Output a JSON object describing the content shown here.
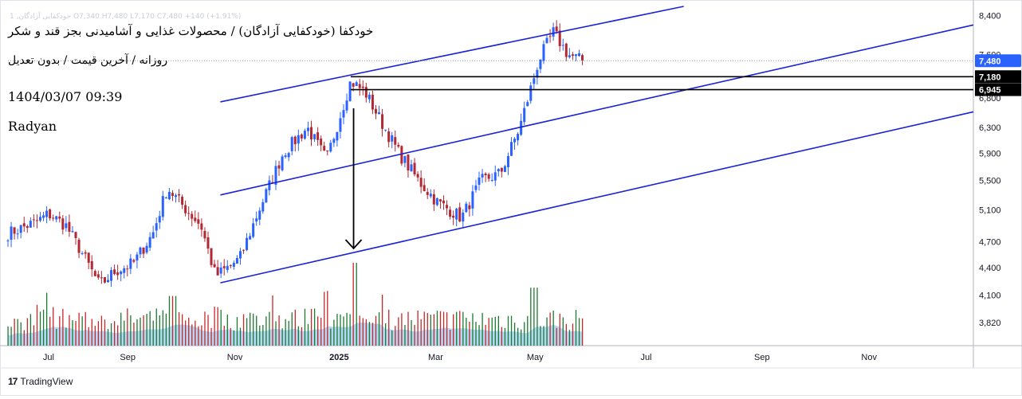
{
  "header": {
    "symbol_line": "خودکفا (خودکفایی آزادگان) / محصولات غذایی و آشامیدنی بجز قند و شکر",
    "period_line": "روزانه / آخرین قیمت / بدون تعدیل",
    "timestamp": "1404/03/07 09:39",
    "author": "Radyan",
    "faint_legend": "1 ,خودکفایی آزادگان  O7,340 H7,480 L7,170 C7,480 +140 (+1.91%)"
  },
  "branding": {
    "logo_text": "TradingView",
    "logo_mark": "17"
  },
  "colors": {
    "up": "#2962ff",
    "down": "#b22833",
    "channel": "#1a23d4",
    "volume_up": "#1b7a2e",
    "volume_down": "#c62828",
    "volume_ma": "#9ccbf3",
    "price_badge": "#2962ff",
    "level_badge": "#000000"
  },
  "chart_data": {
    "type": "candlestick",
    "interval": "daily",
    "y_axis": {
      "position": "right",
      "ticks": [
        "8,400",
        "7,600",
        "6,800",
        "6,300",
        "5,900",
        "5,500",
        "5,100",
        "4,700",
        "4,400",
        "4,100",
        "3,820"
      ],
      "range": [
        3600,
        8600
      ],
      "scale": "log"
    },
    "x_axis": {
      "ticks": [
        "Jul",
        "Sep",
        "Nov",
        "2025",
        "Mar",
        "May",
        "Jul",
        "Sep",
        "Nov"
      ]
    },
    "last_price": {
      "value": 7480,
      "label": "7,480"
    },
    "horizontal_levels": [
      {
        "value": 7180,
        "label": "7,180"
      },
      {
        "value": 6945,
        "label": "6,945"
      }
    ],
    "channel_lines": [
      {
        "name": "upper",
        "from": {
          "t": 0.22,
          "v": 6730
        },
        "to": {
          "t": 0.7,
          "v": 8600
        }
      },
      {
        "name": "middle",
        "from": {
          "t": 0.22,
          "v": 5300
        },
        "to": {
          "t": 1.0,
          "v": 8200
        }
      },
      {
        "name": "lower",
        "from": {
          "t": 0.22,
          "v": 4230
        },
        "to": {
          "t": 1.0,
          "v": 6560
        }
      }
    ],
    "arrow": {
      "from": {
        "t": 0.358,
        "v": 6620
      },
      "to": {
        "t": 0.358,
        "v": 4620
      }
    },
    "price_path": [
      {
        "t": 0.0,
        "v": 4800
      },
      {
        "t": 0.03,
        "v": 4950
      },
      {
        "t": 0.042,
        "v": 5050
      },
      {
        "t": 0.06,
        "v": 4900
      },
      {
        "t": 0.075,
        "v": 4600
      },
      {
        "t": 0.095,
        "v": 4200
      },
      {
        "t": 0.11,
        "v": 4350
      },
      {
        "t": 0.13,
        "v": 4450
      },
      {
        "t": 0.15,
        "v": 4800
      },
      {
        "t": 0.165,
        "v": 5400
      },
      {
        "t": 0.185,
        "v": 5100
      },
      {
        "t": 0.2,
        "v": 4900
      },
      {
        "t": 0.215,
        "v": 4300
      },
      {
        "t": 0.24,
        "v": 4500
      },
      {
        "t": 0.26,
        "v": 5100
      },
      {
        "t": 0.285,
        "v": 5900
      },
      {
        "t": 0.31,
        "v": 6300
      },
      {
        "t": 0.33,
        "v": 5800
      },
      {
        "t": 0.355,
        "v": 7100
      },
      {
        "t": 0.37,
        "v": 6900
      },
      {
        "t": 0.39,
        "v": 6300
      },
      {
        "t": 0.405,
        "v": 5900
      },
      {
        "t": 0.425,
        "v": 5500
      },
      {
        "t": 0.445,
        "v": 5200
      },
      {
        "t": 0.47,
        "v": 5000
      },
      {
        "t": 0.49,
        "v": 5500
      },
      {
        "t": 0.51,
        "v": 5600
      },
      {
        "t": 0.53,
        "v": 6300
      },
      {
        "t": 0.55,
        "v": 7500
      },
      {
        "t": 0.565,
        "v": 8050
      },
      {
        "t": 0.58,
        "v": 7600
      },
      {
        "t": 0.595,
        "v": 7480
      }
    ],
    "volume": {
      "pattern": "daily volume bars with moving-average area",
      "peaks": [
        {
          "t": 0.17,
          "level": 0.6
        },
        {
          "t": 0.33,
          "level": 0.65
        },
        {
          "t": 0.36,
          "level": 1.0
        },
        {
          "t": 0.545,
          "level": 0.7
        }
      ]
    }
  }
}
